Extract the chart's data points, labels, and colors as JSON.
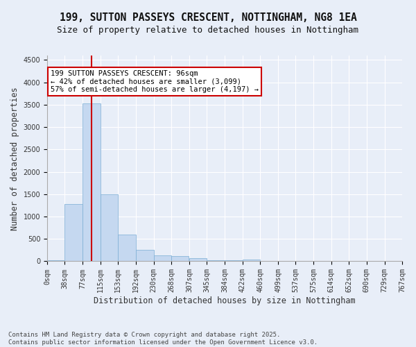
{
  "title_line1": "199, SUTTON PASSEYS CRESCENT, NOTTINGHAM, NG8 1EA",
  "title_line2": "Size of property relative to detached houses in Nottingham",
  "xlabel": "Distribution of detached houses by size in Nottingham",
  "ylabel": "Number of detached properties",
  "bar_color": "#c5d8f0",
  "bar_edge_color": "#7aadd4",
  "background_color": "#e8eef8",
  "grid_color": "#ffffff",
  "bin_labels": [
    "0sqm",
    "38sqm",
    "77sqm",
    "115sqm",
    "153sqm",
    "192sqm",
    "230sqm",
    "268sqm",
    "307sqm",
    "345sqm",
    "384sqm",
    "422sqm",
    "460sqm",
    "499sqm",
    "537sqm",
    "575sqm",
    "614sqm",
    "652sqm",
    "690sqm",
    "729sqm",
    "767sqm"
  ],
  "bin_edges": [
    0,
    38,
    77,
    115,
    153,
    192,
    230,
    268,
    307,
    345,
    384,
    422,
    460,
    499,
    537,
    575,
    614,
    652,
    690,
    729,
    767
  ],
  "bar_values": [
    30,
    1280,
    3530,
    1490,
    600,
    250,
    130,
    115,
    75,
    30,
    20,
    35,
    0,
    0,
    0,
    0,
    0,
    0,
    0,
    0
  ],
  "ylim": [
    0,
    4600
  ],
  "yticks": [
    0,
    500,
    1000,
    1500,
    2000,
    2500,
    3000,
    3500,
    4000,
    4500
  ],
  "vline_x": 96,
  "annotation_title": "199 SUTTON PASSEYS CRESCENT: 96sqm",
  "annotation_line1": "← 42% of detached houses are smaller (3,099)",
  "annotation_line2": "57% of semi-detached houses are larger (4,197) →",
  "annotation_box_color": "#ffffff",
  "annotation_border_color": "#cc0000",
  "vline_color": "#cc0000",
  "footer_line1": "Contains HM Land Registry data © Crown copyright and database right 2025.",
  "footer_line2": "Contains public sector information licensed under the Open Government Licence v3.0.",
  "title_fontsize": 10.5,
  "subtitle_fontsize": 9,
  "axis_label_fontsize": 8.5,
  "tick_fontsize": 7,
  "annotation_fontsize": 7.5,
  "footer_fontsize": 6.5
}
